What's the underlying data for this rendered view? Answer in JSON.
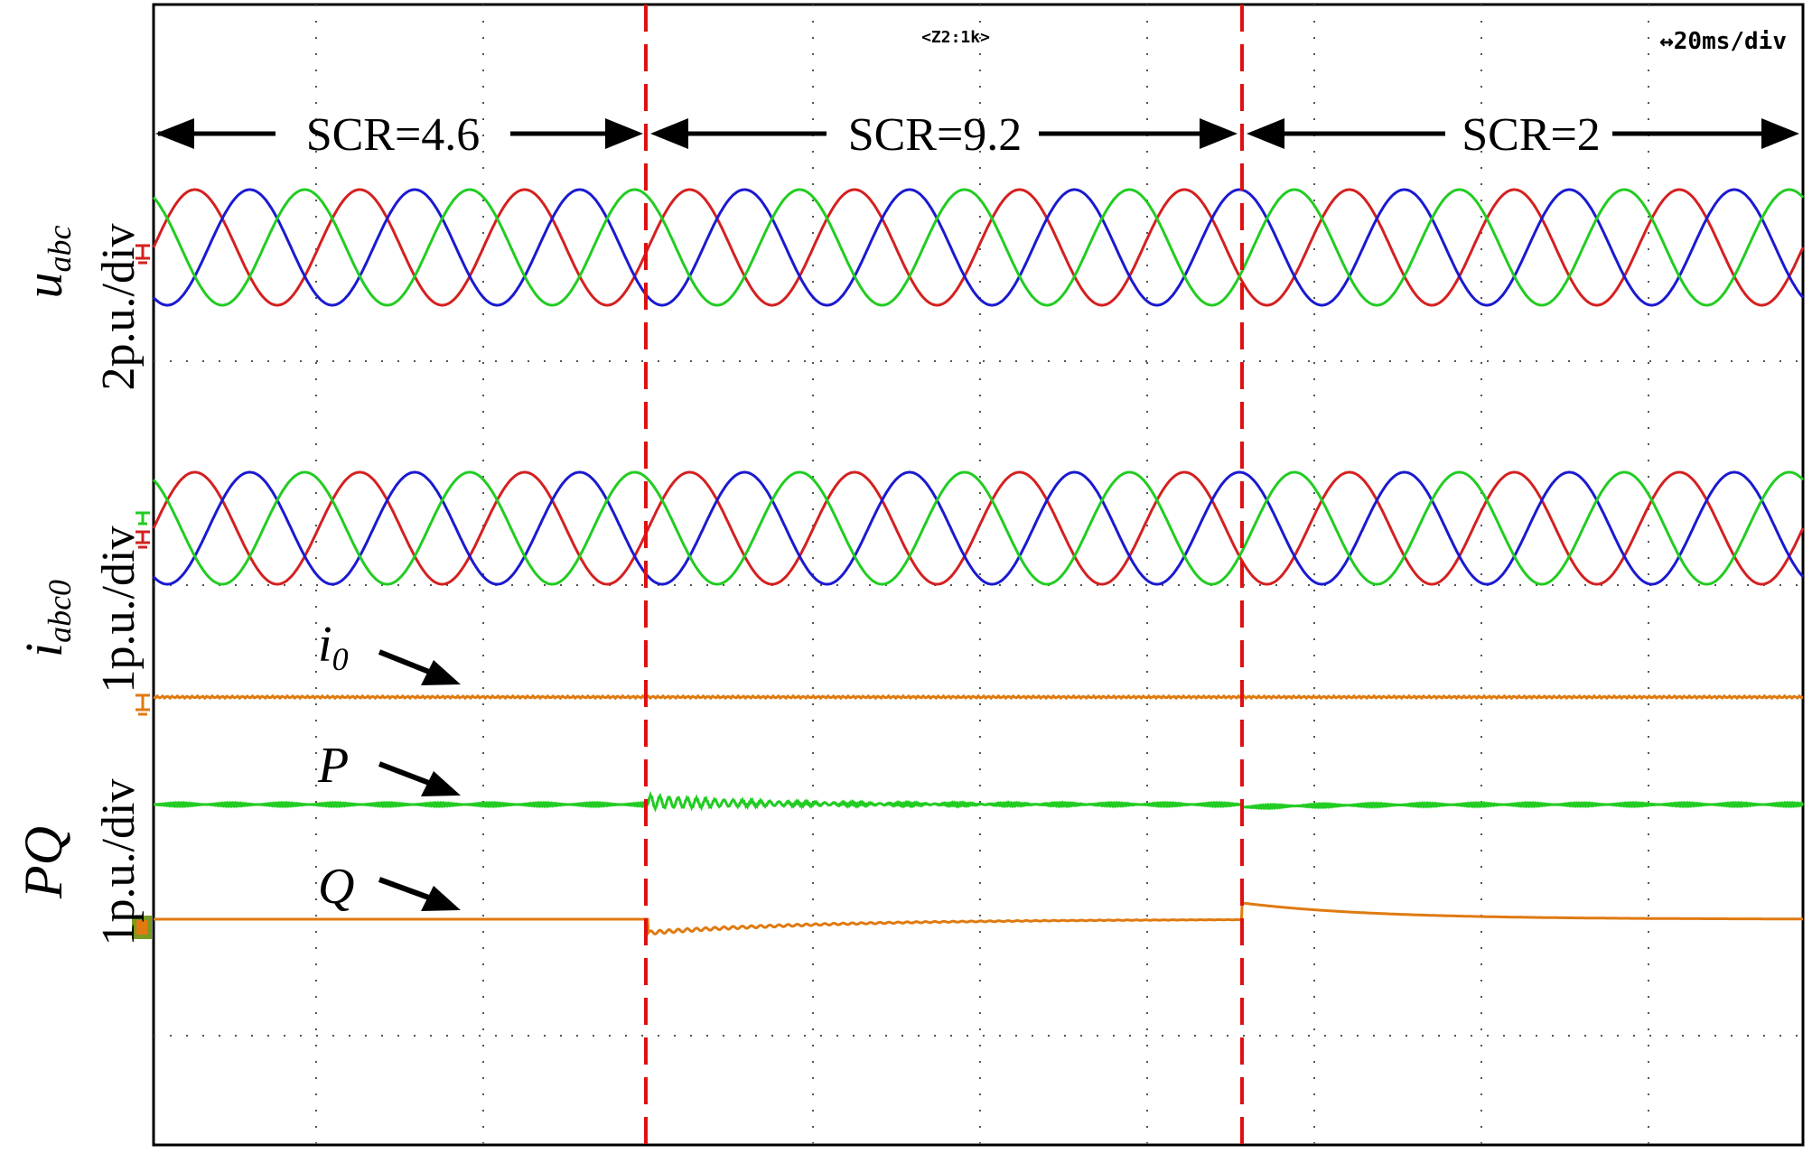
{
  "header": {
    "zoom": "<Z2:1k>",
    "timebase": "↔20ms/div"
  },
  "segments": [
    {
      "label": "SCR=4.6"
    },
    {
      "label": "SCR=9.2"
    },
    {
      "label": "SCR=2"
    }
  ],
  "channels": {
    "voltage": {
      "symbol": "u",
      "sub": "abc",
      "scale": "2p.u./div"
    },
    "current": {
      "symbol": "i",
      "sub": "abc0",
      "scale": "1p.u./div"
    },
    "power": {
      "symbol": "PQ",
      "scale": "1p.u./div"
    }
  },
  "annotations": {
    "i0": {
      "symbol": "i",
      "sub": "0"
    },
    "p": "P",
    "q": "Q"
  },
  "colors": {
    "phase_a": "#d42020",
    "phase_b": "#1a1ad0",
    "phase_c": "#22cc22",
    "i0": "#e07a10",
    "p": "#22cc22",
    "q": "#e07a10",
    "event_line": "#e01010"
  },
  "chart_data": {
    "type": "line",
    "time_per_div_ms": 20,
    "x_range_ms": [
      0,
      200
    ],
    "events_ms": [
      60,
      132
    ],
    "fundamental_hz": 50,
    "series": [
      {
        "name": "u_a",
        "amplitude_pu": 1.0,
        "phase_deg": 0
      },
      {
        "name": "u_b",
        "amplitude_pu": 1.0,
        "phase_deg": -120
      },
      {
        "name": "u_c",
        "amplitude_pu": 1.0,
        "phase_deg": 120
      },
      {
        "name": "i_a",
        "amplitude_pu": 1.0,
        "phase_deg": 0
      },
      {
        "name": "i_b",
        "amplitude_pu": 1.0,
        "phase_deg": -120
      },
      {
        "name": "i_c",
        "amplitude_pu": 1.0,
        "phase_deg": 120
      },
      {
        "name": "i_0",
        "level_pu": 0
      },
      {
        "name": "P",
        "level_pu": 1.0,
        "transient_at_ms": 60,
        "oscillation_pu": 0.05
      },
      {
        "name": "Q",
        "level_pu": 0,
        "step_at_60ms_pu": -0.15,
        "step_at_132ms_pu": 0.18
      }
    ]
  }
}
